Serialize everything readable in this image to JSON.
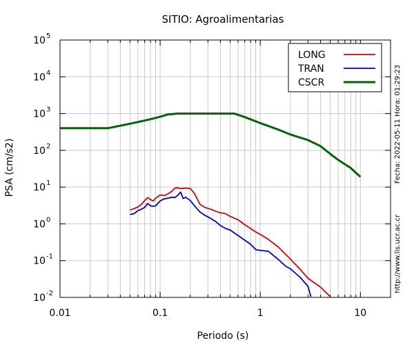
{
  "chart_data": {
    "type": "line",
    "title": "SITIO: Agroalimentarias",
    "xlabel": "Periodo (s)",
    "ylabel": "PSA (cm/s2)",
    "xscale": "log",
    "yscale": "log",
    "xlim": [
      0.01,
      20
    ],
    "ylim": [
      0.01,
      100000
    ],
    "xticks": [
      {
        "value": 0.01,
        "label": "0.01"
      },
      {
        "value": 0.1,
        "label": "0.1"
      },
      {
        "value": 1,
        "label": "1"
      },
      {
        "value": 10,
        "label": "10"
      }
    ],
    "yticks": [
      {
        "value": 0.01,
        "base": "10",
        "exp": "-2"
      },
      {
        "value": 0.1,
        "base": "10",
        "exp": "-1"
      },
      {
        "value": 1,
        "base": "10",
        "exp": "0"
      },
      {
        "value": 10,
        "base": "10",
        "exp": "1"
      },
      {
        "value": 100,
        "base": "10",
        "exp": "2"
      },
      {
        "value": 1000,
        "base": "10",
        "exp": "3"
      },
      {
        "value": 10000,
        "base": "10",
        "exp": "4"
      },
      {
        "value": 100000,
        "base": "10",
        "exp": "5"
      }
    ],
    "grid": true,
    "legend_position": "top-right",
    "series": [
      {
        "name": "LONG",
        "color": "#e00000",
        "x": [
          0.05,
          0.055,
          0.06,
          0.065,
          0.07,
          0.075,
          0.08,
          0.085,
          0.09,
          0.1,
          0.11,
          0.12,
          0.13,
          0.14,
          0.15,
          0.16,
          0.18,
          0.2,
          0.22,
          0.25,
          0.28,
          0.32,
          0.36,
          0.4,
          0.45,
          0.5,
          0.6,
          0.7,
          0.8,
          0.9,
          1.0,
          1.2,
          1.5,
          2.0,
          2.5,
          3.0,
          4.0,
          5.0
        ],
        "y": [
          2.4,
          2.6,
          2.9,
          3.4,
          4.3,
          5.2,
          4.6,
          4.2,
          5.0,
          6.1,
          5.9,
          6.6,
          7.6,
          9.3,
          9.6,
          9.1,
          9.4,
          9.2,
          6.7,
          3.4,
          2.8,
          2.5,
          2.2,
          2.0,
          1.9,
          1.6,
          1.3,
          0.95,
          0.75,
          0.6,
          0.52,
          0.38,
          0.24,
          0.11,
          0.058,
          0.033,
          0.019,
          0.0105
        ]
      },
      {
        "name": "TRAN",
        "color": "#0000d0",
        "x": [
          0.05,
          0.055,
          0.06,
          0.065,
          0.07,
          0.075,
          0.08,
          0.085,
          0.09,
          0.1,
          0.11,
          0.12,
          0.13,
          0.14,
          0.15,
          0.16,
          0.17,
          0.18,
          0.2,
          0.22,
          0.25,
          0.28,
          0.32,
          0.36,
          0.4,
          0.45,
          0.5,
          0.6,
          0.7,
          0.8,
          0.9,
          1.0,
          1.2,
          1.5,
          1.8,
          2.0,
          2.5,
          3.0,
          3.2
        ],
        "y": [
          1.8,
          1.9,
          2.3,
          2.5,
          2.8,
          3.6,
          3.1,
          3.0,
          3.1,
          4.2,
          4.8,
          5.0,
          5.3,
          5.2,
          6.0,
          7.3,
          4.9,
          5.3,
          4.3,
          3.1,
          2.1,
          1.7,
          1.4,
          1.15,
          0.9,
          0.75,
          0.68,
          0.48,
          0.36,
          0.28,
          0.2,
          0.19,
          0.18,
          0.11,
          0.07,
          0.06,
          0.035,
          0.02,
          0.0105
        ]
      },
      {
        "name": "CSCR",
        "color": "#006400",
        "x": [
          0.01,
          0.03,
          0.05,
          0.08,
          0.1,
          0.12,
          0.15,
          0.2,
          0.3,
          0.4,
          0.55,
          0.7,
          1.0,
          1.5,
          2.0,
          3.0,
          4.0,
          5.0,
          6.0,
          8.0,
          10.0
        ],
        "y": [
          400,
          400,
          530,
          700,
          820,
          950,
          1000,
          1000,
          1000,
          1000,
          1000,
          800,
          550,
          370,
          270,
          190,
          130,
          80,
          55,
          33,
          19
        ]
      }
    ]
  },
  "side_note_left": "Fecha: 2022-05-11 Hora: 01:29:23",
  "side_note_right": "http://www.lis.ucr.ac.cr"
}
